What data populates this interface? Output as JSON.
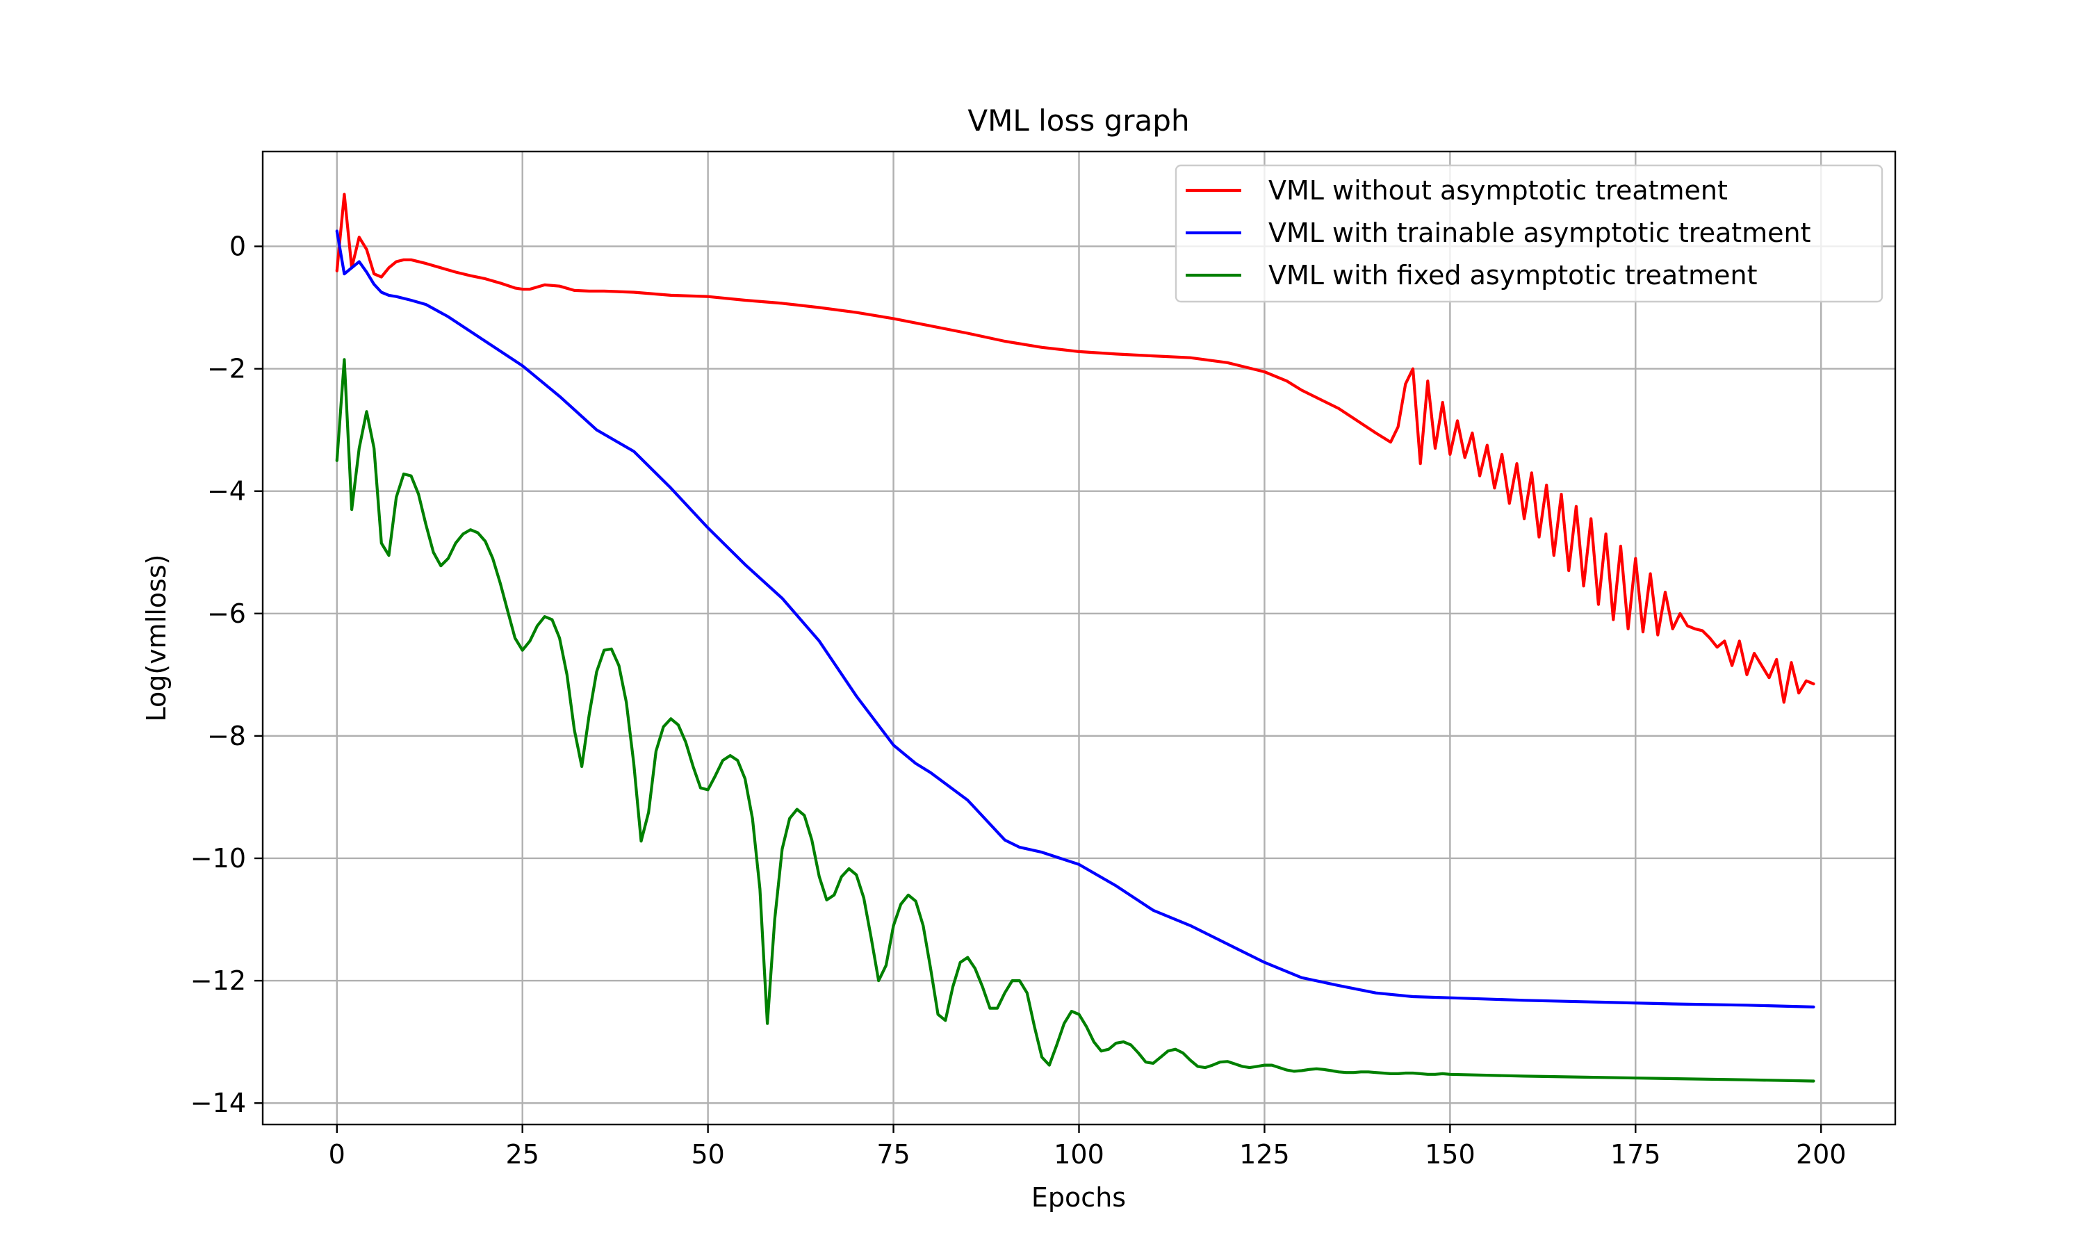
{
  "chart_data": {
    "type": "line",
    "title": "VML loss graph",
    "xlabel": "Epochs",
    "ylabel": "Log(vmlloss)",
    "xlim": [
      -10,
      210
    ],
    "ylim": [
      -14.35,
      1.55
    ],
    "xticks": [
      0,
      25,
      50,
      75,
      100,
      125,
      150,
      175,
      200
    ],
    "yticks": [
      0,
      -2,
      -4,
      -6,
      -8,
      -10,
      -12,
      -14
    ],
    "xtick_labels": [
      "0",
      "25",
      "50",
      "75",
      "100",
      "125",
      "150",
      "175",
      "200"
    ],
    "ytick_labels": [
      "0",
      "−2",
      "−4",
      "−6",
      "−8",
      "−10",
      "−12",
      "−14"
    ],
    "grid": true,
    "legend_position": "top-right",
    "series": [
      {
        "name": "VML without asymptotic treatment",
        "color": "#ff0000",
        "x": [
          0,
          1,
          2,
          3,
          4,
          5,
          6,
          7,
          8,
          9,
          10,
          12,
          14,
          16,
          18,
          20,
          22,
          24,
          25,
          26,
          28,
          30,
          32,
          34,
          36,
          40,
          45,
          50,
          55,
          60,
          65,
          70,
          75,
          80,
          85,
          90,
          95,
          100,
          105,
          110,
          115,
          120,
          125,
          128,
          130,
          135,
          140,
          142,
          143,
          144,
          145,
          146,
          147,
          148,
          149,
          150,
          151,
          152,
          153,
          154,
          155,
          156,
          157,
          158,
          159,
          160,
          161,
          162,
          163,
          164,
          165,
          166,
          167,
          168,
          169,
          170,
          171,
          172,
          173,
          174,
          175,
          176,
          177,
          178,
          179,
          180,
          181,
          182,
          183,
          184,
          185,
          186,
          187,
          188,
          189,
          190,
          191,
          192,
          193,
          194,
          195,
          196,
          197,
          198,
          199
        ],
        "values": [
          -0.4,
          0.85,
          -0.35,
          0.15,
          -0.05,
          -0.45,
          -0.5,
          -0.35,
          -0.25,
          -0.22,
          -0.22,
          -0.28,
          -0.35,
          -0.42,
          -0.48,
          -0.53,
          -0.6,
          -0.68,
          -0.7,
          -0.7,
          -0.63,
          -0.65,
          -0.72,
          -0.73,
          -0.73,
          -0.75,
          -0.8,
          -0.82,
          -0.88,
          -0.93,
          -1.0,
          -1.08,
          -1.18,
          -1.3,
          -1.42,
          -1.55,
          -1.65,
          -1.72,
          -1.76,
          -1.79,
          -1.82,
          -1.9,
          -2.05,
          -2.2,
          -2.35,
          -2.65,
          -3.05,
          -3.2,
          -2.95,
          -2.25,
          -2.0,
          -3.55,
          -2.2,
          -3.3,
          -2.55,
          -3.4,
          -2.85,
          -3.45,
          -3.05,
          -3.75,
          -3.25,
          -3.95,
          -3.4,
          -4.2,
          -3.55,
          -4.45,
          -3.7,
          -4.75,
          -3.9,
          -5.05,
          -4.05,
          -5.3,
          -4.25,
          -5.55,
          -4.45,
          -5.85,
          -4.7,
          -6.1,
          -4.9,
          -6.25,
          -5.1,
          -6.3,
          -5.35,
          -6.35,
          -5.65,
          -6.25,
          -6.0,
          -6.2,
          -6.25,
          -6.28,
          -6.4,
          -6.55,
          -6.45,
          -6.85,
          -6.45,
          -7.0,
          -6.65,
          -6.85,
          -7.05,
          -6.75,
          -7.45,
          -6.8,
          -7.3,
          -7.1,
          -7.15
        ]
      },
      {
        "name": "VML with trainable asymptotic treatment",
        "color": "#0000ff",
        "x": [
          0,
          1,
          2,
          3,
          4,
          5,
          6,
          7,
          8,
          10,
          12,
          15,
          20,
          25,
          30,
          35,
          40,
          45,
          50,
          55,
          60,
          65,
          70,
          75,
          78,
          80,
          85,
          90,
          92,
          95,
          100,
          105,
          110,
          115,
          120,
          125,
          130,
          135,
          140,
          145,
          150,
          160,
          170,
          180,
          190,
          199
        ],
        "values": [
          0.25,
          -0.45,
          -0.35,
          -0.25,
          -0.42,
          -0.62,
          -0.75,
          -0.8,
          -0.82,
          -0.88,
          -0.95,
          -1.15,
          -1.55,
          -1.95,
          -2.45,
          -3.0,
          -3.35,
          -3.95,
          -4.6,
          -5.2,
          -5.75,
          -6.45,
          -7.35,
          -8.15,
          -8.45,
          -8.6,
          -9.05,
          -9.7,
          -9.82,
          -9.9,
          -10.1,
          -10.45,
          -10.85,
          -11.1,
          -11.4,
          -11.7,
          -11.95,
          -12.08,
          -12.2,
          -12.26,
          -12.28,
          -12.32,
          -12.35,
          -12.38,
          -12.4,
          -12.43
        ]
      },
      {
        "name": "VML with fixed asymptotic treatment",
        "color": "#008000",
        "x": [
          0,
          1,
          2,
          3,
          4,
          5,
          6,
          7,
          8,
          9,
          10,
          11,
          12,
          13,
          14,
          15,
          16,
          17,
          18,
          19,
          20,
          21,
          22,
          23,
          24,
          25,
          26,
          27,
          28,
          29,
          30,
          31,
          32,
          33,
          34,
          35,
          36,
          37,
          38,
          39,
          40,
          41,
          42,
          43,
          44,
          45,
          46,
          47,
          48,
          49,
          50,
          51,
          52,
          53,
          54,
          55,
          56,
          57,
          58,
          59,
          60,
          61,
          62,
          63,
          64,
          65,
          66,
          67,
          68,
          69,
          70,
          71,
          72,
          73,
          74,
          75,
          76,
          77,
          78,
          79,
          80,
          81,
          82,
          83,
          84,
          85,
          86,
          87,
          88,
          89,
          90,
          91,
          92,
          93,
          94,
          95,
          96,
          97,
          98,
          99,
          100,
          101,
          102,
          103,
          104,
          105,
          106,
          107,
          108,
          109,
          110,
          111,
          112,
          113,
          114,
          115,
          116,
          117,
          118,
          119,
          120,
          121,
          122,
          123,
          124,
          125,
          126,
          127,
          128,
          129,
          130,
          131,
          132,
          133,
          134,
          135,
          136,
          137,
          138,
          139,
          140,
          141,
          142,
          143,
          144,
          145,
          146,
          147,
          148,
          149,
          150,
          160,
          170,
          180,
          190,
          199
        ],
        "values": [
          -3.5,
          -1.85,
          -4.3,
          -3.3,
          -2.7,
          -3.3,
          -4.85,
          -5.05,
          -4.1,
          -3.72,
          -3.75,
          -4.05,
          -4.55,
          -5.0,
          -5.22,
          -5.1,
          -4.85,
          -4.7,
          -4.63,
          -4.68,
          -4.82,
          -5.1,
          -5.5,
          -5.95,
          -6.4,
          -6.6,
          -6.45,
          -6.2,
          -6.05,
          -6.1,
          -6.4,
          -7.0,
          -7.9,
          -8.5,
          -7.65,
          -6.95,
          -6.6,
          -6.58,
          -6.85,
          -7.45,
          -8.45,
          -9.72,
          -9.25,
          -8.25,
          -7.85,
          -7.72,
          -7.82,
          -8.1,
          -8.5,
          -8.85,
          -8.88,
          -8.65,
          -8.4,
          -8.32,
          -8.4,
          -8.7,
          -9.35,
          -10.5,
          -12.7,
          -11.0,
          -9.85,
          -9.35,
          -9.2,
          -9.3,
          -9.7,
          -10.3,
          -10.68,
          -10.6,
          -10.3,
          -10.17,
          -10.27,
          -10.65,
          -11.3,
          -12.0,
          -11.75,
          -11.1,
          -10.75,
          -10.6,
          -10.7,
          -11.1,
          -11.8,
          -12.55,
          -12.65,
          -12.1,
          -11.7,
          -11.62,
          -11.8,
          -12.1,
          -12.45,
          -12.45,
          -12.2,
          -12.0,
          -12.0,
          -12.2,
          -12.75,
          -13.25,
          -13.38,
          -13.05,
          -12.7,
          -12.5,
          -12.55,
          -12.75,
          -13.0,
          -13.15,
          -13.12,
          -13.02,
          -13.0,
          -13.05,
          -13.18,
          -13.33,
          -13.35,
          -13.25,
          -13.15,
          -13.12,
          -13.18,
          -13.3,
          -13.4,
          -13.42,
          -13.38,
          -13.33,
          -13.32,
          -13.36,
          -13.4,
          -13.42,
          -13.4,
          -13.38,
          -13.38,
          -13.42,
          -13.46,
          -13.48,
          -13.47,
          -13.45,
          -13.44,
          -13.45,
          -13.47,
          -13.49,
          -13.5,
          -13.5,
          -13.49,
          -13.49,
          -13.5,
          -13.51,
          -13.52,
          -13.52,
          -13.51,
          -13.51,
          -13.52,
          -13.53,
          -13.53,
          -13.52,
          -13.53,
          -13.56,
          -13.58,
          -13.6,
          -13.62,
          -13.64
        ]
      }
    ]
  }
}
